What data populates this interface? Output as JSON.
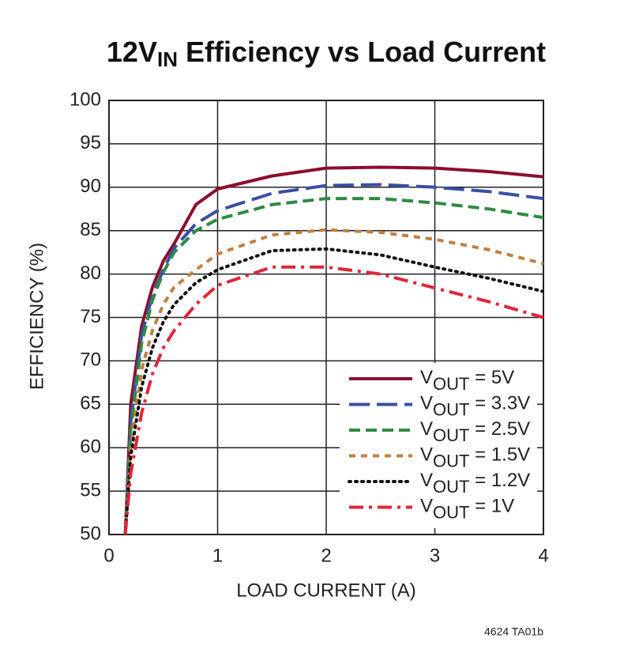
{
  "chart_data": {
    "type": "line",
    "title": [
      "12V",
      "IN",
      " Efficiency vs Load Current"
    ],
    "xlabel": "LOAD CURRENT (A)",
    "ylabel": "EFFICIENCY (%)",
    "annotation": "4624 TA01b",
    "x": [
      0.15,
      0.2,
      0.3,
      0.4,
      0.5,
      0.6,
      0.8,
      1.0,
      1.5,
      2.0,
      2.5,
      3.0,
      3.5,
      4.0
    ],
    "series": [
      {
        "name": [
          "V",
          "OUT",
          " = 5V"
        ],
        "color": "#8b0e2c",
        "line_style": "solid",
        "values": [
          50,
          65,
          74,
          78.5,
          81.5,
          83.5,
          88,
          89.8,
          91.3,
          92.2,
          92.3,
          92.2,
          91.8,
          91.2
        ]
      },
      {
        "name": [
          "V",
          "OUT",
          " = 3.3V"
        ],
        "color": "#3a4fa3",
        "line_style": "long-dash",
        "values": [
          50,
          63,
          73,
          77.5,
          80.5,
          83,
          85.8,
          87.3,
          89.3,
          90.2,
          90.3,
          90,
          89.5,
          88.7
        ]
      },
      {
        "name": [
          "V",
          "OUT",
          " = 2.5V"
        ],
        "color": "#2f8a44",
        "line_style": "dash",
        "values": [
          50,
          62,
          72,
          77,
          80.2,
          82.5,
          85,
          86.3,
          88,
          88.7,
          88.7,
          88.2,
          87.5,
          86.5
        ]
      },
      {
        "name": [
          "V",
          "OUT",
          " = 1.5V"
        ],
        "color": "#c08040",
        "line_style": "short-dash",
        "values": [
          50,
          60,
          69,
          73.5,
          76.5,
          78.5,
          80.5,
          82.3,
          84.5,
          85.1,
          84.8,
          84,
          82.8,
          81.2
        ]
      },
      {
        "name": [
          "V",
          "OUT",
          " = 1.2V"
        ],
        "color": "#111111",
        "line_style": "dotted",
        "values": [
          50,
          59,
          67,
          71.5,
          74.5,
          76.5,
          79,
          80.5,
          82.7,
          82.9,
          82.2,
          80.8,
          79.5,
          78
        ]
      },
      {
        "name": [
          "V",
          "OUT",
          " = 1V"
        ],
        "color": "#e0253a",
        "line_style": "dash-dot",
        "values": [
          50,
          57,
          64,
          68.5,
          71.5,
          73.5,
          76.5,
          78.7,
          80.8,
          80.8,
          80,
          78.4,
          76.8,
          75
        ]
      }
    ],
    "xlim": [
      0,
      4
    ],
    "xticks": [
      0,
      1,
      2,
      3,
      4
    ],
    "ylim": [
      50,
      100
    ],
    "yticks": [
      50,
      55,
      60,
      65,
      70,
      75,
      80,
      85,
      90,
      95,
      100
    ],
    "grid": true,
    "legend": "lower right"
  }
}
